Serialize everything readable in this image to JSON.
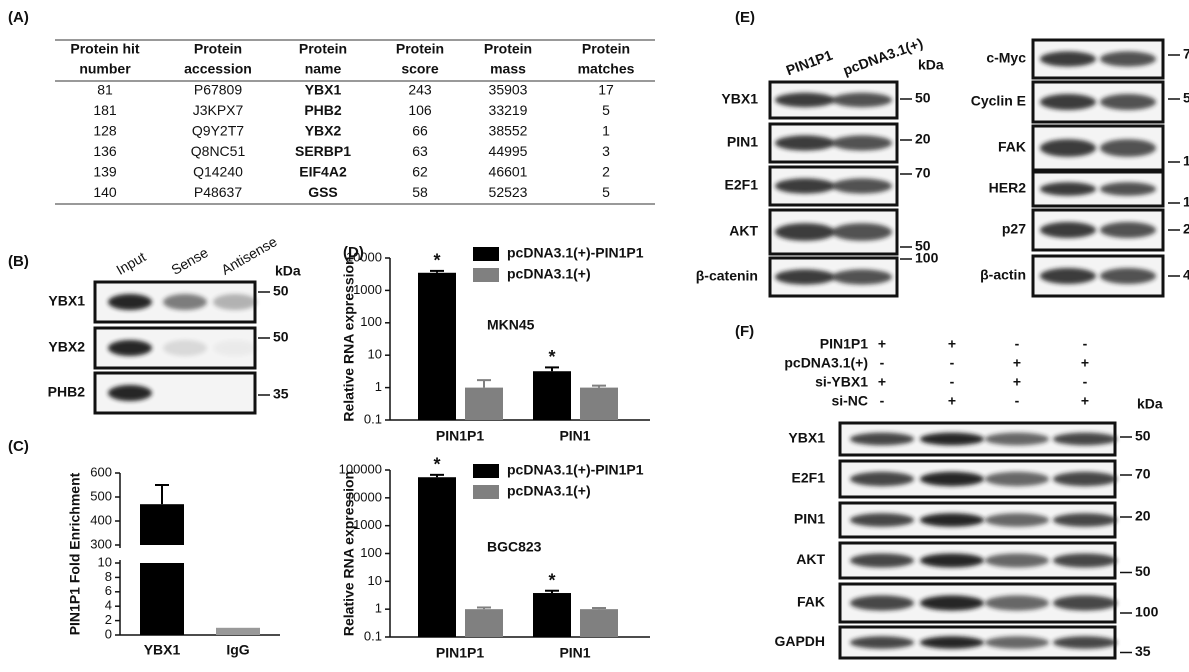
{
  "panel_A": {
    "label": "(A)",
    "table": {
      "header": [
        [
          "Protein hit",
          "number"
        ],
        [
          "Protein",
          "accession"
        ],
        [
          "Protein",
          "name"
        ],
        [
          "Protein",
          "score"
        ],
        [
          "Protein",
          "mass"
        ],
        [
          "Protein",
          "matches"
        ]
      ],
      "rows": [
        [
          81,
          "P67809",
          "YBX1",
          243,
          35903,
          17
        ],
        [
          181,
          "J3KPX7",
          "PHB2",
          106,
          33219,
          5
        ],
        [
          128,
          "Q9Y2T7",
          "YBX2",
          66,
          38552,
          1
        ],
        [
          136,
          "Q8NC51",
          "SERBP1",
          63,
          44995,
          3
        ],
        [
          139,
          "Q14240",
          "EIF4A2",
          62,
          46601,
          2
        ],
        [
          140,
          "P48637",
          "GSS",
          58,
          52523,
          5
        ]
      ]
    }
  },
  "panel_B": {
    "label": "(B)",
    "lanes": [
      "Input",
      "Sense",
      "Antisense"
    ],
    "unit": "kDa",
    "blots": [
      {
        "name": "YBX1",
        "marker": 50
      },
      {
        "name": "YBX2",
        "marker": 50
      },
      {
        "name": "PHB2",
        "marker": 35
      }
    ]
  },
  "panel_C": {
    "label": "(C)"
  },
  "panel_D": {
    "label": "(D)"
  },
  "panel_E": {
    "label": "(E)",
    "lanes": [
      "PIN1P1",
      "pcDNA3.1(+)"
    ],
    "unit": "kDa",
    "left_blots": [
      {
        "name": "YBX1",
        "marker": 50
      },
      {
        "name": "PIN1",
        "marker": 20
      },
      {
        "name": "E2F1",
        "marker": 70
      },
      {
        "name": "AKT",
        "marker": 50
      },
      {
        "name": "β-catenin",
        "marker": 100
      }
    ],
    "right_blots": [
      {
        "name": "c-Myc",
        "marker": 7
      },
      {
        "name": "Cyclin E",
        "marker": 5
      },
      {
        "name": "FAK",
        "marker": 1
      },
      {
        "name": "HER2",
        "marker": 1
      },
      {
        "name": "p27",
        "marker": 2
      },
      {
        "name": "β-actin",
        "marker": 4
      }
    ]
  },
  "panel_F": {
    "label": "(F)",
    "conditions": [
      {
        "name": "PIN1P1",
        "values": [
          "+",
          "+",
          "-",
          "-"
        ]
      },
      {
        "name": "pcDNA3.1(+)",
        "values": [
          "-",
          "-",
          "+",
          "+"
        ]
      },
      {
        "name": "si-YBX1",
        "values": [
          "+",
          "-",
          "+",
          "-"
        ]
      },
      {
        "name": "si-NC",
        "values": [
          "-",
          "+",
          "-",
          "+"
        ]
      }
    ],
    "unit": "kDa",
    "blots": [
      {
        "name": "YBX1",
        "marker": 50
      },
      {
        "name": "E2F1",
        "marker": 70
      },
      {
        "name": "PIN1",
        "marker": 20
      },
      {
        "name": "AKT",
        "marker": 50
      },
      {
        "name": "FAK",
        "marker": 100
      },
      {
        "name": "GAPDH",
        "marker": 35
      }
    ]
  },
  "chart_data": [
    {
      "type": "broken_bar",
      "y_label": "PIN1P1 Fold Enrichment",
      "categories": [
        "YBX1",
        "IgG"
      ],
      "values": [
        470,
        1
      ],
      "errors": [
        80,
        null
      ],
      "colors": [
        "#000000",
        "#999999"
      ],
      "ylim_lower": [
        0,
        10
      ],
      "yticks_lower": [
        0,
        2,
        4,
        6,
        8,
        10
      ],
      "ylim_upper": [
        300,
        600
      ],
      "yticks_upper": [
        300,
        400,
        500,
        600
      ]
    },
    {
      "type": "bar",
      "log_scale": true,
      "y_label": "Relative RNA expression",
      "annotation": "MKN45",
      "categories": [
        "PIN1P1",
        "PIN1"
      ],
      "series": [
        {
          "name": "pcDNA3.1(+)-PIN1P1",
          "color": "#000000",
          "values": [
            3500,
            3.2
          ],
          "errors": [
            500,
            1.0
          ],
          "sig_labels": [
            "*",
            "*"
          ]
        },
        {
          "name": "pcDNA3.1(+)",
          "color": "#808080",
          "values": [
            1.0,
            1.0
          ],
          "errors": [
            0.7,
            0.15
          ]
        }
      ],
      "ylim": [
        0.1,
        10000
      ],
      "yticks": [
        0.1,
        1,
        10,
        100,
        1000,
        10000
      ]
    },
    {
      "type": "bar",
      "log_scale": true,
      "y_label": "Relative RNA expression",
      "annotation": "BGC823",
      "categories": [
        "PIN1P1",
        "PIN1"
      ],
      "series": [
        {
          "name": "pcDNA3.1(+)-PIN1P1",
          "color": "#000000",
          "values": [
            55000,
            3.8
          ],
          "errors": [
            12000,
            0.8
          ],
          "sig_labels": [
            "*",
            "*"
          ]
        },
        {
          "name": "pcDNA3.1(+)",
          "color": "#808080",
          "values": [
            1.0,
            1.0
          ],
          "errors": [
            0.15,
            0.1
          ]
        }
      ],
      "ylim": [
        0.1,
        100000
      ],
      "yticks": [
        0.1,
        1,
        10,
        100,
        1000,
        10000,
        100000
      ]
    }
  ]
}
